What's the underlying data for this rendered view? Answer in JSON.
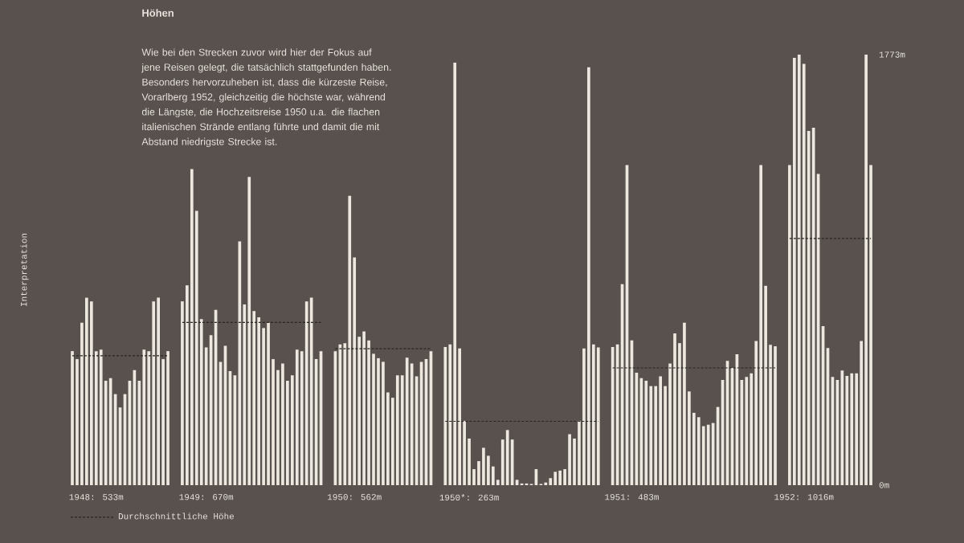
{
  "chart_data": {
    "type": "bar",
    "title": "Höhen",
    "subtitle": "Wie bei den Strecken zuvor wird hier der Fokus auf jene Reisen gelegt, die tatsächlich stattgefunden haben. Besonders hervorzuheben ist, dass die kürzeste Reise, Vorarlberg 1952, gleichzeitig die höchste war, während die Längste, die Hochzeitsreise 1950 u.a. die flachen italienischen Strände entlang führte und damit die mit Abstand niedrigste Strecke ist.",
    "annotations": [
      "Interpretation"
    ],
    "categories": [
      null,
      null,
      null,
      null,
      null,
      "1948: 533m",
      null,
      null,
      null,
      null,
      null,
      null,
      null,
      null,
      null,
      null,
      null,
      null,
      null,
      null,
      null,
      null,
      null,
      null,
      null,
      null,
      null,
      null,
      "1949: 670m",
      null,
      null,
      null,
      null,
      null,
      null,
      null,
      null,
      null,
      null,
      null,
      null,
      null,
      null,
      null,
      null,
      null,
      null,
      null,
      null,
      null,
      null,
      null,
      null,
      null,
      null,
      null,
      null,
      null,
      null,
      "1950: 562m",
      null,
      null,
      null,
      null,
      null,
      null,
      null,
      null,
      null,
      null,
      null,
      null,
      null,
      null,
      null,
      null,
      null,
      null,
      null,
      null,
      null,
      null,
      null,
      "1950*: 263m",
      null,
      null,
      null,
      null,
      null,
      null,
      null,
      null,
      null,
      null,
      null,
      null,
      null,
      null,
      null,
      null,
      null,
      null,
      null,
      null,
      null,
      null,
      null,
      null,
      null,
      null,
      null,
      null,
      null,
      null,
      null,
      null,
      null,
      "1951: 483m",
      null,
      null,
      null,
      null,
      null,
      null,
      null,
      null,
      null,
      null,
      null,
      null,
      null,
      null,
      null,
      null,
      null,
      null,
      null,
      null,
      null,
      null,
      null,
      null,
      null,
      null,
      null,
      null,
      null,
      null,
      null,
      null,
      null,
      null,
      null,
      "1952: 1016m",
      null,
      null,
      null,
      null,
      null,
      null,
      null,
      null,
      null,
      null,
      null,
      null,
      null,
      null
    ],
    "series": [
      {
        "color": "#ece8df",
        "values": [
          552,
          519,
          669,
          772,
          757,
          552,
          558,
          430,
          441,
          375,
          320,
          375,
          430,
          474,
          430,
          558,
          552,
          757,
          772,
          519,
          552,
          null,
          null,
          757,
          823,
          1302,
          1130,
          684,
          567,
          618,
          722,
          508,
          574,
          470,
          452,
          1004,
          744,
          1269,
          717,
          691,
          647,
          669,
          519,
          474,
          501,
          430,
          452,
          558,
          552,
          757,
          772,
          519,
          552,
          null,
          null,
          552,
          580,
          585,
          1192,
          938,
          611,
          633,
          596,
          541,
          523,
          508,
          382,
          360,
          452,
          452,
          525,
          501,
          448,
          508,
          519,
          552,
          null,
          null,
          569,
          580,
          1740,
          563,
          265,
          192,
          66,
          99,
          154,
          121,
          77,
          22,
          188,
          227,
          188,
          22,
          7,
          7,
          5,
          66,
          5,
          11,
          29,
          55,
          60,
          66,
          210,
          192,
          265,
          563,
          1721,
          580,
          567,
          null,
          null,
          569,
          580,
          828,
          1318,
          596,
          463,
          441,
          430,
          408,
          408,
          448,
          408,
          501,
          625,
          585,
          669,
          386,
          298,
          280,
          243,
          249,
          256,
          322,
          433,
          512,
          483,
          539,
          433,
          446,
          461,
          594,
          1318,
          821,
          578,
          572,
          null,
          null,
          1318,
          1760,
          1773,
          1735,
          1459,
          1472,
          1282,
          655,
          565,
          446,
          433,
          472,
          450,
          461,
          461,
          594,
          1773,
          1318
        ]
      },
      {
        "type": "line",
        "name": "Durchschnittliche Höhe",
        "color": "#2a2523",
        "line_style": "dashed",
        "values": [
          533,
          533,
          533,
          533,
          533,
          533,
          533,
          533,
          533,
          533,
          533,
          533,
          533,
          533,
          533,
          533,
          533,
          533,
          533,
          533,
          533,
          null,
          null,
          670,
          670,
          670,
          670,
          670,
          670,
          670,
          670,
          670,
          670,
          670,
          670,
          670,
          670,
          670,
          670,
          670,
          670,
          670,
          670,
          670,
          670,
          670,
          670,
          670,
          670,
          670,
          670,
          670,
          670,
          null,
          null,
          562,
          562,
          562,
          562,
          562,
          562,
          562,
          562,
          562,
          562,
          562,
          562,
          562,
          562,
          562,
          562,
          562,
          562,
          562,
          562,
          562,
          null,
          null,
          263,
          263,
          263,
          263,
          263,
          263,
          263,
          263,
          263,
          263,
          263,
          263,
          263,
          263,
          263,
          263,
          263,
          263,
          263,
          263,
          263,
          263,
          263,
          263,
          263,
          263,
          263,
          263,
          263,
          263,
          263,
          263,
          263,
          null,
          null,
          483,
          483,
          483,
          483,
          483,
          483,
          483,
          483,
          483,
          483,
          483,
          483,
          483,
          483,
          483,
          483,
          483,
          483,
          483,
          483,
          483,
          483,
          483,
          483,
          483,
          483,
          483,
          483,
          483,
          483,
          483,
          483,
          483,
          483,
          483,
          null,
          null,
          1016,
          1016,
          1016,
          1016,
          1016,
          1016,
          1016,
          1016,
          1016,
          1016,
          1016,
          1016,
          1016,
          1016,
          1016,
          1016,
          1016,
          1016
        ]
      }
    ],
    "ylim": [
      0,
      1773
    ],
    "yticks": [
      {
        "value": 0,
        "label": "0m"
      },
      {
        "value": 1773,
        "label": "1773m"
      }
    ],
    "legend": "bottom left"
  }
}
